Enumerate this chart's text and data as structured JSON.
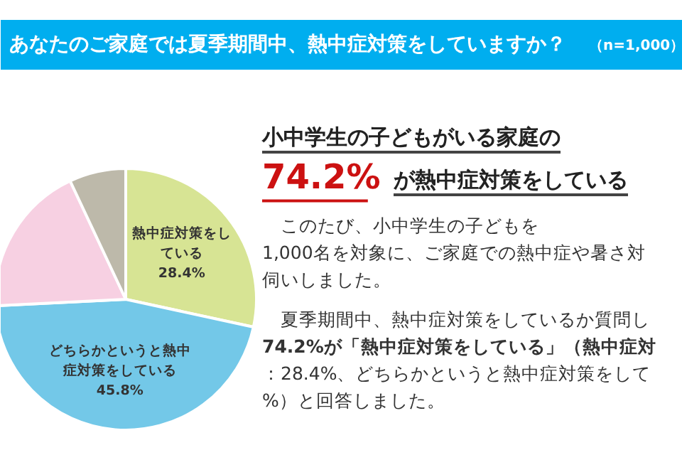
{
  "chart_data": {
    "type": "pie",
    "title": "あなたのご家庭では夏季期間中、熱中症対策をしていますか？",
    "subtitle": "（n=1,000）",
    "categories": [
      "熱中症対策をしている",
      "どちらかというと熱中症対策をしている",
      null,
      null
    ],
    "values": [
      28.4,
      45.8,
      18.8,
      7.0
    ],
    "colors": [
      "#d7e494",
      "#73c8e8",
      "#f7d0e2",
      "#bdb9aa"
    ],
    "value_labels": [
      "28.4%",
      "45.8%",
      null,
      null
    ],
    "annotations": [
      "小中学生の子どもがいる家庭の",
      "74.2%",
      "が熱中症対策をしている",
      "　このたび、小中学生の子どもを",
      "1,000名を対象に、ご家庭での熱中症や暑さ対",
      "伺いしました。",
      "　夏季期間中、熱中症対策をしているか質問し",
      "74.2%が「熱中症対策をしている」（熱中症対",
      "：28.4%、どちらかというと熱中症対策をして",
      "%）と回答しました。"
    ]
  }
}
